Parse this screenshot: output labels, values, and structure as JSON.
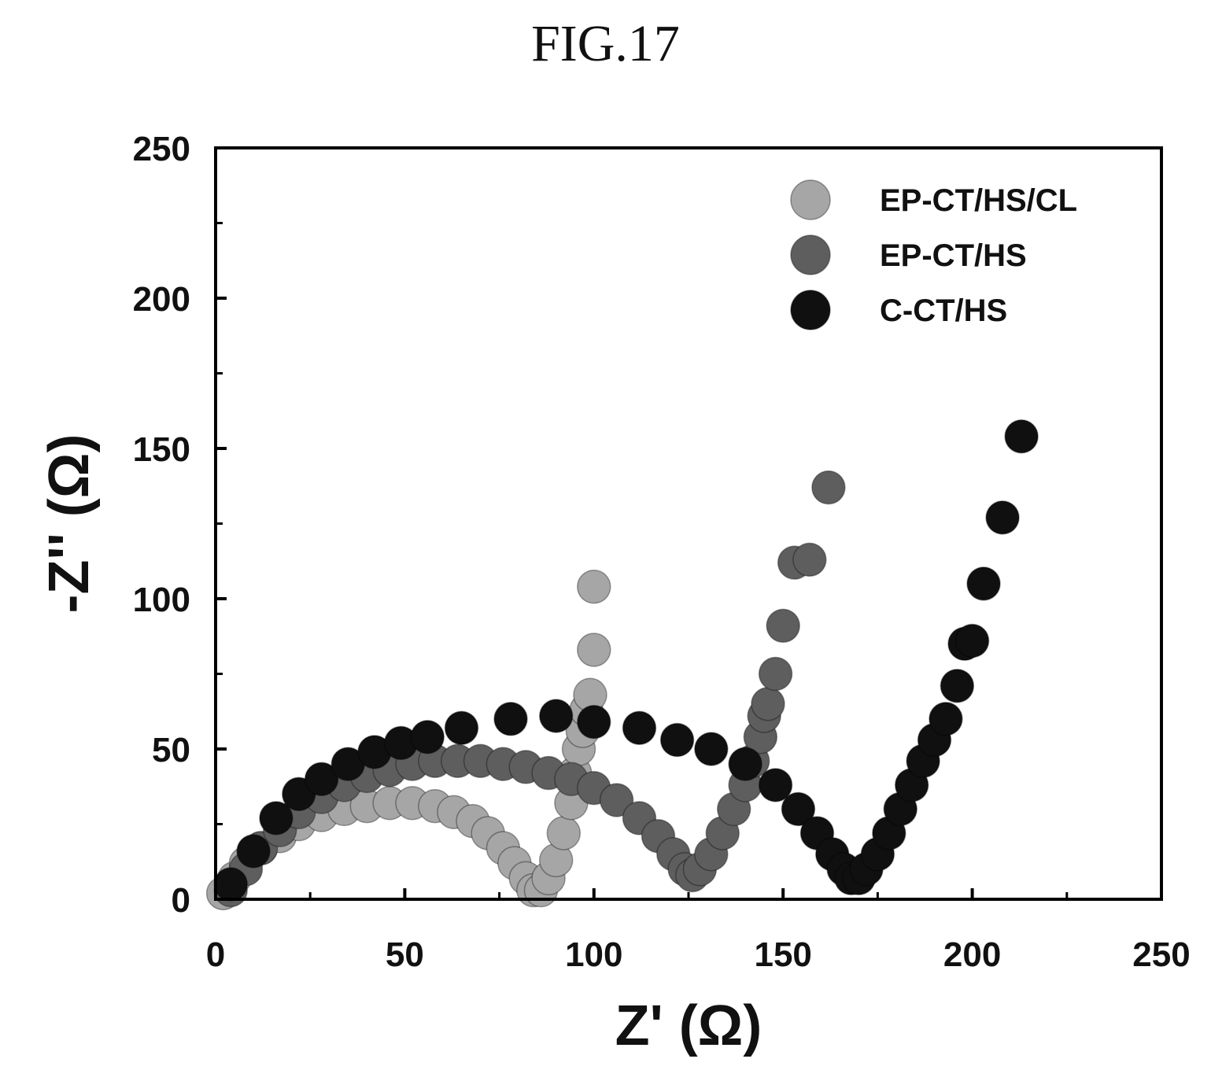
{
  "figure_label": "FIG.17",
  "chart_data": {
    "type": "scatter",
    "title": "FIG.17",
    "xlabel": "Z' (Ω)",
    "ylabel": "-Z'' (Ω)",
    "xlim": [
      0,
      250
    ],
    "ylim": [
      0,
      250
    ],
    "xticks": [
      0,
      50,
      100,
      150,
      200,
      250
    ],
    "yticks": [
      0,
      50,
      100,
      150,
      200,
      250
    ],
    "grid": false,
    "legend_position": "top-right",
    "colors": {
      "EP-CT/HS/CL": "#a6a6a6",
      "EP-CT/HS": "#5e5e5e",
      "C-CT/HS": "#101010"
    },
    "series": [
      {
        "name": "EP-CT/HS/CL",
        "x": [
          2,
          5,
          8,
          12,
          17,
          22,
          28,
          34,
          40,
          46,
          52,
          58,
          63,
          68,
          72,
          76,
          79,
          82,
          84,
          86,
          88,
          90,
          92,
          94,
          95,
          96,
          97,
          98,
          99,
          100,
          100
        ],
        "y": [
          2,
          7,
          12,
          17,
          21,
          25,
          28,
          30,
          31,
          32,
          32,
          31,
          29,
          26,
          22,
          17,
          12,
          7,
          3,
          3,
          7,
          13,
          22,
          32,
          42,
          50,
          56,
          63,
          68,
          83,
          104
        ]
      },
      {
        "name": "EP-CT/HS",
        "x": [
          4,
          8,
          12,
          17,
          22,
          28,
          34,
          40,
          46,
          52,
          58,
          64,
          70,
          76,
          82,
          88,
          94,
          100,
          106,
          112,
          117,
          121,
          124,
          126,
          128,
          131,
          134,
          137,
          140,
          142,
          144,
          145,
          146,
          148,
          150,
          153,
          157,
          162
        ],
        "y": [
          3,
          10,
          17,
          23,
          29,
          34,
          38,
          41,
          43,
          45,
          46,
          46,
          46,
          45,
          44,
          42,
          40,
          37,
          33,
          27,
          21,
          15,
          10,
          8,
          10,
          15,
          22,
          30,
          38,
          46,
          54,
          61,
          65,
          75,
          91,
          112,
          113,
          137
        ]
      },
      {
        "name": "C-CT/HS",
        "x": [
          4,
          10,
          16,
          22,
          28,
          35,
          42,
          49,
          56,
          65,
          78,
          90,
          100,
          112,
          122,
          131,
          140,
          148,
          154,
          159,
          163,
          166,
          168,
          170,
          172,
          175,
          178,
          181,
          184,
          187,
          190,
          193,
          196,
          198,
          200,
          203,
          208,
          213
        ],
        "y": [
          5,
          16,
          27,
          35,
          40,
          45,
          49,
          52,
          54,
          57,
          60,
          61,
          59,
          57,
          53,
          50,
          45,
          38,
          30,
          22,
          15,
          10,
          7,
          7,
          10,
          15,
          22,
          30,
          38,
          46,
          53,
          60,
          71,
          85,
          86,
          105,
          127,
          154
        ]
      }
    ]
  }
}
